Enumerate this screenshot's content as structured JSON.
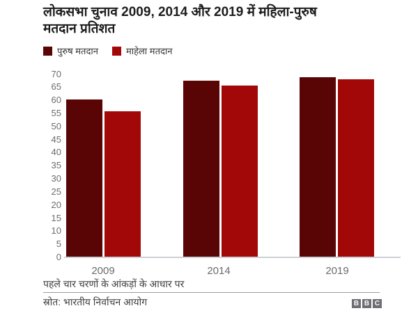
{
  "title": {
    "line1": "लोकसभा चुनाव 2009, 2014 और 2019 में महिला-पुरुष",
    "line2": "मतदान प्रतिशत",
    "full": "लोकसभा चुनाव 2009, 2014 और 2019 में महिला-पुरुष मतदान प्रतिशत"
  },
  "chart_data": {
    "type": "bar",
    "categories": [
      "2009",
      "2014",
      "2019"
    ],
    "series": [
      {
        "key": "male",
        "name": "पुरुष मतदान",
        "color": "#5a0505",
        "values": [
          60.3,
          67.4,
          68.8
        ]
      },
      {
        "key": "female",
        "name": "माहेला मतदान",
        "color": "#a30808",
        "values": [
          55.8,
          65.5,
          68.1
        ]
      }
    ],
    "ylim": [
      0,
      70
    ],
    "yticks": [
      0,
      5,
      10,
      15,
      20,
      25,
      30,
      35,
      40,
      45,
      50,
      55,
      60,
      65,
      70
    ],
    "xlabel": "",
    "ylabel": "",
    "grid": false,
    "legend_position": "top-left"
  },
  "footer": {
    "note": "पहले चार चरणों के आंकड़ों के आधार पर",
    "source": "स्रोत: भारतीय निर्वाचन आयोग"
  },
  "logo": {
    "letters": [
      "B",
      "B",
      "C"
    ]
  },
  "colors": {
    "male_bar": "#5a0505",
    "female_bar": "#a30808",
    "title_text": "#1c1c1c",
    "axis_text": "#6b6b6b",
    "baseline": "#cdd0d5",
    "footer_text": "#3f3f3f",
    "divider": "#9a9a9a",
    "bbc_gray": "#6e6e73",
    "background": "#ffffff"
  }
}
